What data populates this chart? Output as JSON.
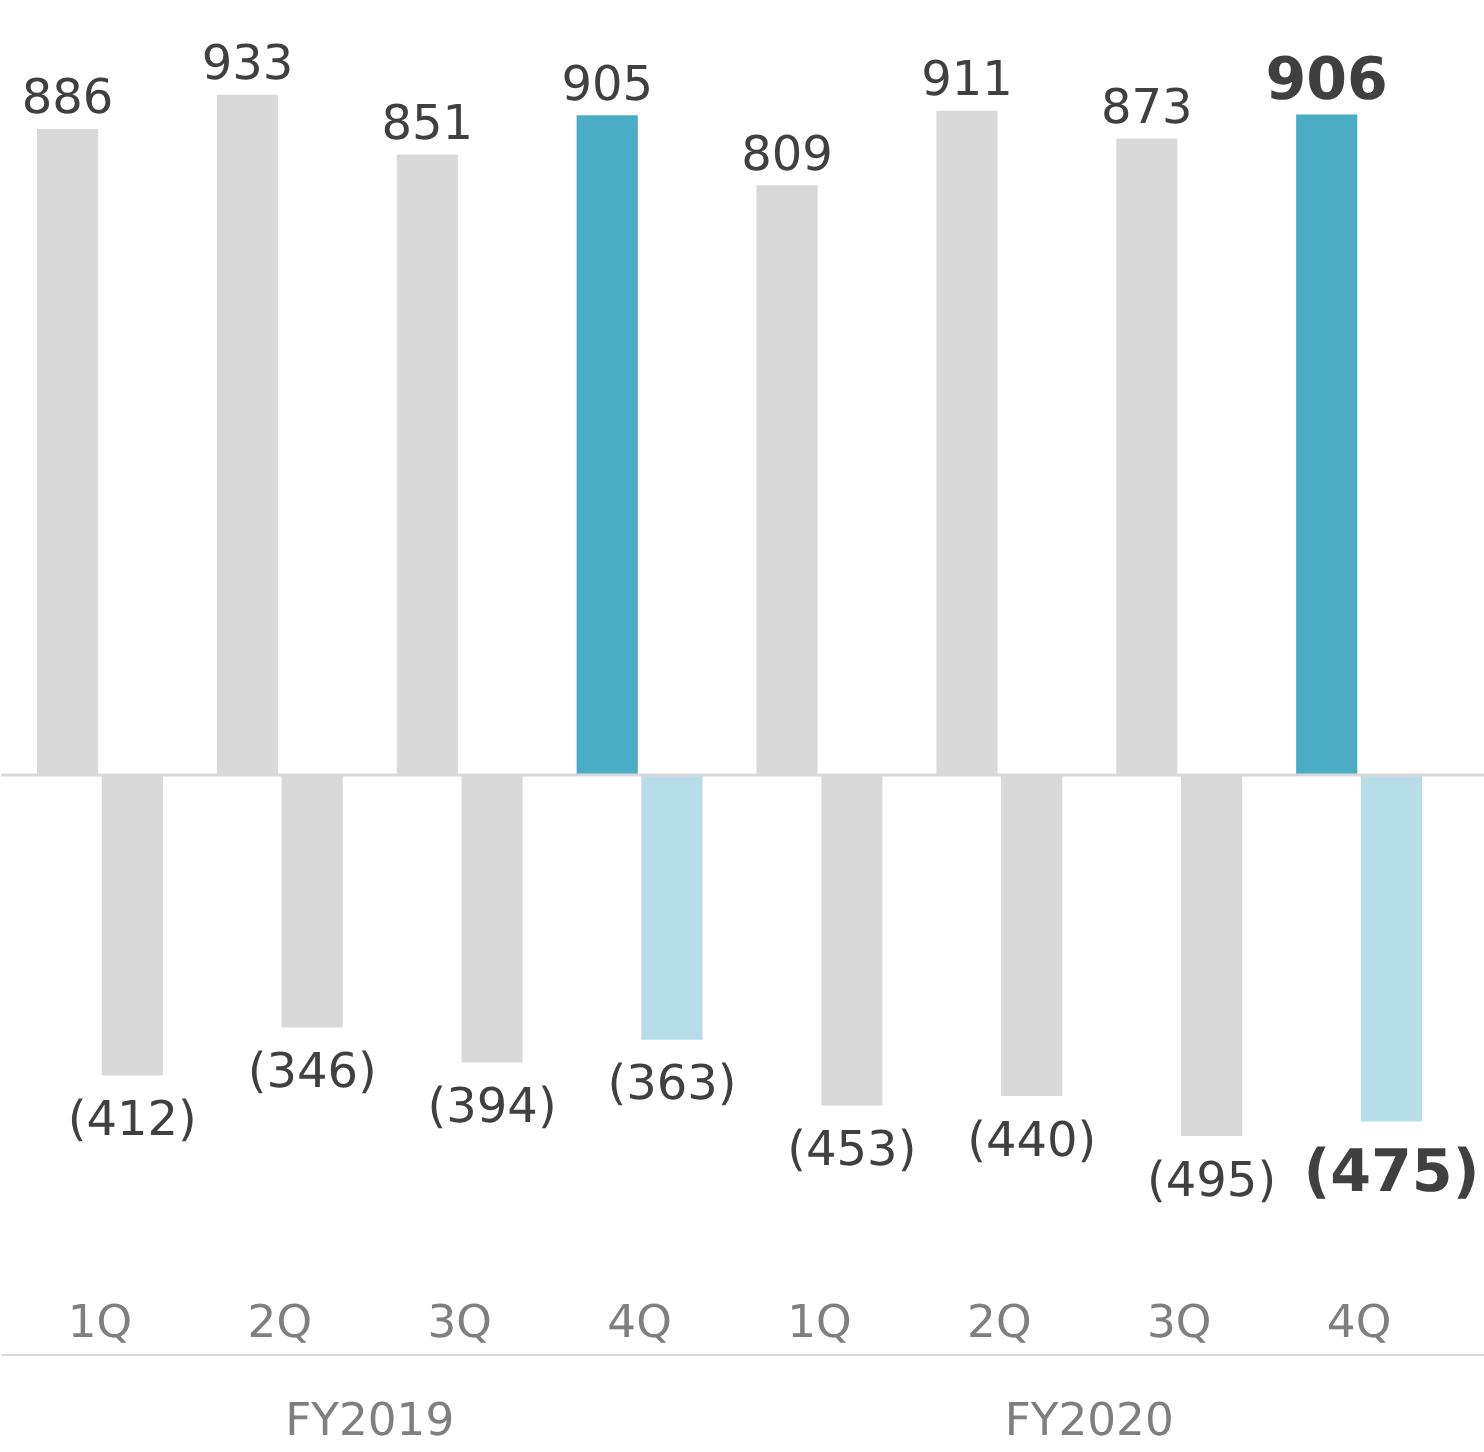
{
  "chart_data": {
    "type": "bar",
    "categories": [
      "1Q",
      "2Q",
      "3Q",
      "4Q",
      "1Q",
      "2Q",
      "3Q",
      "4Q"
    ],
    "series": [
      {
        "values": [
          886,
          933,
          851,
          905,
          809,
          911,
          873,
          906
        ],
        "colors": [
          "#d9d9d9",
          "#d9d9d9",
          "#d9d9d9",
          "#4bacc6",
          "#d9d9d9",
          "#d9d9d9",
          "#d9d9d9",
          "#4bacc6"
        ],
        "value_labels": [
          "886",
          "933",
          "851",
          "905",
          "809",
          "911",
          "873",
          "906"
        ]
      },
      {
        "values": [
          -412,
          -346,
          -394,
          -363,
          -453,
          -440,
          -495,
          -475
        ],
        "colors": [
          "#d9d9d9",
          "#d9d9d9",
          "#d9d9d9",
          "#b7dde8",
          "#d9d9d9",
          "#d9d9d9",
          "#d9d9d9",
          "#b7dde8"
        ],
        "value_labels": [
          "(412)",
          "(346)",
          "(394)",
          "(363)",
          "(453)",
          "(440)",
          "(495)",
          "(475)"
        ]
      }
    ],
    "annotations": [
      "FY2019",
      "FY2020"
    ]
  }
}
